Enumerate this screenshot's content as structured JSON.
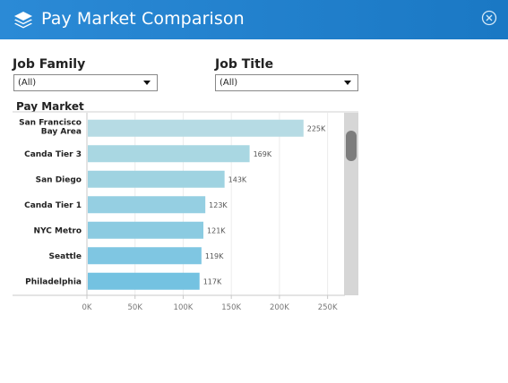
{
  "window": {
    "title": "Pay Market Comparison",
    "icon": "layers-icon",
    "close_icon": "close-circle-icon",
    "accent_color": "#1f7fcb"
  },
  "filters": {
    "job_family": {
      "label": "Job Family",
      "value": "(All)"
    },
    "job_title": {
      "label": "Job Title",
      "value": "(All)"
    }
  },
  "chart_title": "Pay Market",
  "chart_data": {
    "type": "bar",
    "orientation": "horizontal",
    "categories": [
      "San Francisco Bay Area",
      "Canda Tier 3",
      "San Diego",
      "Canda Tier 1",
      "NYC Metro",
      "Seattle",
      "Philadelphia"
    ],
    "category_label_lines": [
      [
        "San Francisco",
        "Bay Area"
      ],
      [
        "Canda Tier 3"
      ],
      [
        "San Diego"
      ],
      [
        "Canda Tier 1"
      ],
      [
        "NYC Metro"
      ],
      [
        "Seattle"
      ],
      [
        "Philadelphia"
      ]
    ],
    "values": [
      225000,
      169000,
      143000,
      123000,
      121000,
      119000,
      117000
    ],
    "value_labels": [
      "225K",
      "169K",
      "143K",
      "123K",
      "121K",
      "119K",
      "117K"
    ],
    "x_ticks": [
      0,
      50000,
      100000,
      150000,
      200000,
      250000
    ],
    "x_tick_labels": [
      "0K",
      "50K",
      "100K",
      "150K",
      "200K",
      "250K"
    ],
    "xlim": [
      0,
      255000
    ],
    "bar_colors": [
      "#b6dbe4",
      "#a9d7e2",
      "#9fd3e1",
      "#95cfe2",
      "#8bcbe1",
      "#7fc6e2",
      "#74c2e1"
    ],
    "grid": true,
    "legend": "none"
  }
}
